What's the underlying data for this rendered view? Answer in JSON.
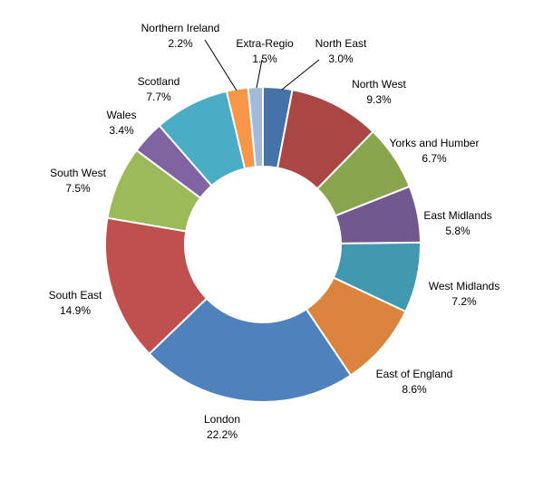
{
  "chart_data": {
    "type": "pie",
    "variant": "donut",
    "legend": "none",
    "slices": [
      {
        "name": "North East",
        "value": 3.0,
        "label": "3.0%",
        "color": "#4572A7"
      },
      {
        "name": "North West",
        "value": 9.3,
        "label": "9.3%",
        "color": "#AA4643"
      },
      {
        "name": "Yorks and Humber",
        "value": 6.7,
        "label": "6.7%",
        "color": "#89A54E"
      },
      {
        "name": "East Midlands",
        "value": 5.8,
        "label": "5.8%",
        "color": "#71588F"
      },
      {
        "name": "West Midlands",
        "value": 7.2,
        "label": "7.2%",
        "color": "#4198AF"
      },
      {
        "name": "East of England",
        "value": 8.6,
        "label": "8.6%",
        "color": "#DB843D"
      },
      {
        "name": "London",
        "value": 22.2,
        "label": "22.2%",
        "color": "#4F81BD"
      },
      {
        "name": "South East",
        "value": 14.9,
        "label": "14.9%",
        "color": "#C0504D"
      },
      {
        "name": "South West",
        "value": 7.5,
        "label": "7.5%",
        "color": "#9BBB59"
      },
      {
        "name": "Wales",
        "value": 3.4,
        "label": "3.4%",
        "color": "#8064A2"
      },
      {
        "name": "Scotland",
        "value": 7.7,
        "label": "7.7%",
        "color": "#4BACC6"
      },
      {
        "name": "Northern Ireland",
        "value": 2.2,
        "label": "2.2%",
        "color": "#F79646"
      },
      {
        "name": "Extra-Regio",
        "value": 1.5,
        "label": "1.5%",
        "color": "#A5B9DA"
      }
    ]
  }
}
